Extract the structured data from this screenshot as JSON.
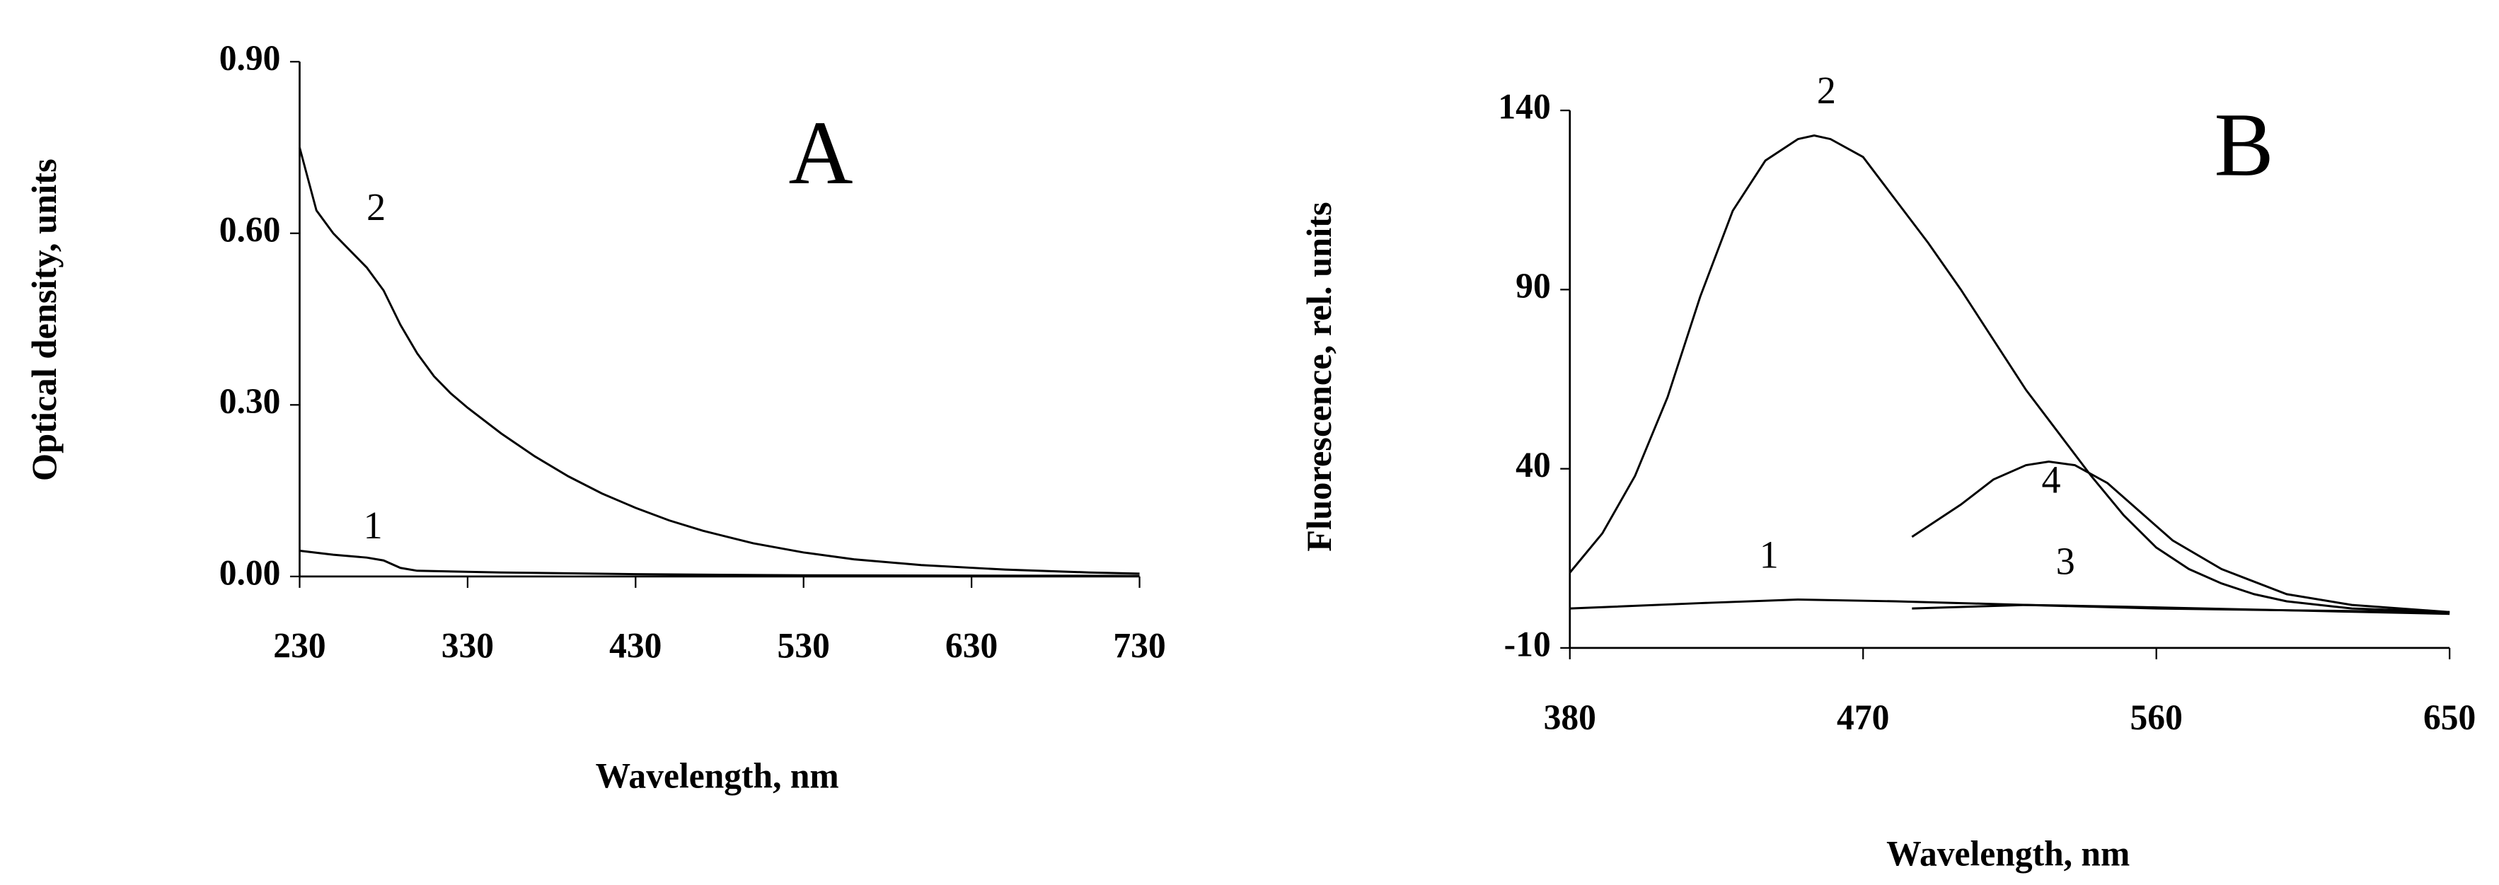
{
  "chart_data": [
    {
      "type": "line",
      "panel": "A",
      "xlabel": "Wavelength, nm",
      "ylabel": "Optical density, units",
      "xlim": [
        230,
        730
      ],
      "ylim": [
        0,
        0.9
      ],
      "xticks": [
        230,
        330,
        430,
        530,
        630,
        730
      ],
      "yticks": [
        {
          "value": 0,
          "label": "0.00"
        },
        {
          "value": 0.3,
          "label": "0.30"
        },
        {
          "value": 0.6,
          "label": "0.60"
        },
        {
          "value": 0.9,
          "label": "0.90"
        }
      ],
      "series": [
        {
          "name": "2",
          "color": "#000000",
          "x": [
            230,
            240,
            250,
            260,
            270,
            280,
            290,
            300,
            310,
            320,
            330,
            350,
            370,
            390,
            410,
            430,
            450,
            470,
            500,
            530,
            560,
            600,
            650,
            700,
            730
          ],
          "values": [
            0.75,
            0.64,
            0.6,
            0.57,
            0.54,
            0.5,
            0.44,
            0.39,
            0.35,
            0.32,
            0.295,
            0.25,
            0.21,
            0.175,
            0.145,
            0.12,
            0.098,
            0.08,
            0.058,
            0.042,
            0.03,
            0.02,
            0.012,
            0.007,
            0.005
          ]
        },
        {
          "name": "1",
          "color": "#000000",
          "x": [
            230,
            250,
            270,
            280,
            290,
            300,
            350,
            430,
            530,
            730
          ],
          "values": [
            0.045,
            0.038,
            0.033,
            0.028,
            0.015,
            0.01,
            0.007,
            0.004,
            0.002,
            0.001
          ]
        }
      ]
    },
    {
      "type": "line",
      "panel": "B",
      "xlabel": "Wavelength, nm",
      "ylabel": "Fluorescence, rel. units",
      "xlim": [
        380,
        650
      ],
      "ylim": [
        -10,
        140
      ],
      "xticks": [
        380,
        470,
        560,
        650
      ],
      "yticks": [
        -10,
        40,
        90,
        140
      ],
      "series": [
        {
          "name": "2",
          "color": "#000000",
          "x": [
            380,
            390,
            400,
            410,
            420,
            430,
            440,
            450,
            455,
            460,
            470,
            480,
            490,
            500,
            510,
            520,
            530,
            540,
            550,
            560,
            570,
            580,
            590,
            600,
            620,
            650
          ],
          "values": [
            11,
            22,
            38,
            60,
            88,
            112,
            126,
            132,
            133,
            132,
            127,
            115,
            103,
            90,
            76,
            62,
            50,
            38,
            27,
            18,
            12,
            8,
            5,
            3,
            1,
            0
          ]
        },
        {
          "name": "4",
          "color": "#000000",
          "x": [
            485,
            500,
            510,
            520,
            527,
            535,
            545,
            555,
            565,
            580,
            600,
            620,
            650
          ],
          "values": [
            21,
            30,
            37,
            41,
            42,
            41,
            36,
            28,
            20,
            12,
            5,
            2,
            0
          ]
        },
        {
          "name": "1",
          "color": "#000000",
          "x": [
            380,
            420,
            450,
            480,
            520,
            560,
            600,
            650
          ],
          "values": [
            1,
            2.5,
            3.5,
            3,
            2,
            1,
            0.5,
            0
          ]
        },
        {
          "name": "3",
          "color": "#000000",
          "x": [
            485,
            520,
            550,
            600,
            650
          ],
          "values": [
            1,
            2,
            1.5,
            0.5,
            -0.5
          ]
        }
      ]
    }
  ]
}
